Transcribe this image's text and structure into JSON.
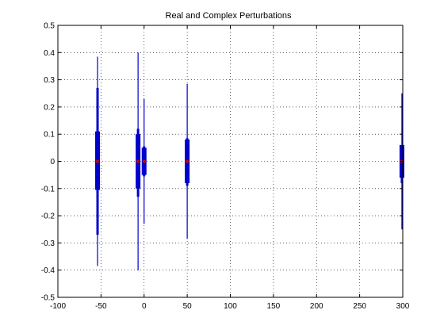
{
  "chart_data": {
    "type": "scatter",
    "title": "Real and Complex Perturbations",
    "xlabel": "",
    "ylabel": "",
    "xlim": [
      -100,
      300
    ],
    "ylim": [
      -0.5,
      0.5
    ],
    "xticks": [
      -100,
      -50,
      0,
      50,
      100,
      150,
      200,
      250,
      300
    ],
    "yticks": [
      -0.5,
      -0.4,
      -0.3,
      -0.2,
      -0.1,
      0,
      0.1,
      0.2,
      0.3,
      0.4,
      0.5
    ],
    "grid": true,
    "grid_style": "dotted",
    "series_color": "#0000cc",
    "center_color": "#cc0000",
    "clusters": [
      {
        "x": -54,
        "thin_min": -0.385,
        "thin_max": 0.385,
        "mid_min": -0.27,
        "mid_max": 0.27,
        "thick_min": -0.105,
        "thick_max": 0.11
      },
      {
        "x": -7,
        "thin_min": -0.4,
        "thin_max": 0.4,
        "mid_min": -0.13,
        "mid_max": 0.12,
        "thick_min": -0.1,
        "thick_max": 0.1
      },
      {
        "x": 0,
        "thin_min": -0.23,
        "thin_max": 0.23,
        "mid_min": -0.055,
        "mid_max": 0.055,
        "thick_min": -0.05,
        "thick_max": 0.05
      },
      {
        "x": 50,
        "thin_min": -0.285,
        "thin_max": 0.285,
        "mid_min": -0.09,
        "mid_max": 0.085,
        "thick_min": -0.08,
        "thick_max": 0.08
      },
      {
        "x": 299,
        "thin_min": -0.25,
        "thin_max": 0.25,
        "mid_min": -0.08,
        "mid_max": 0.06,
        "thick_min": -0.06,
        "thick_max": 0.06
      }
    ]
  }
}
